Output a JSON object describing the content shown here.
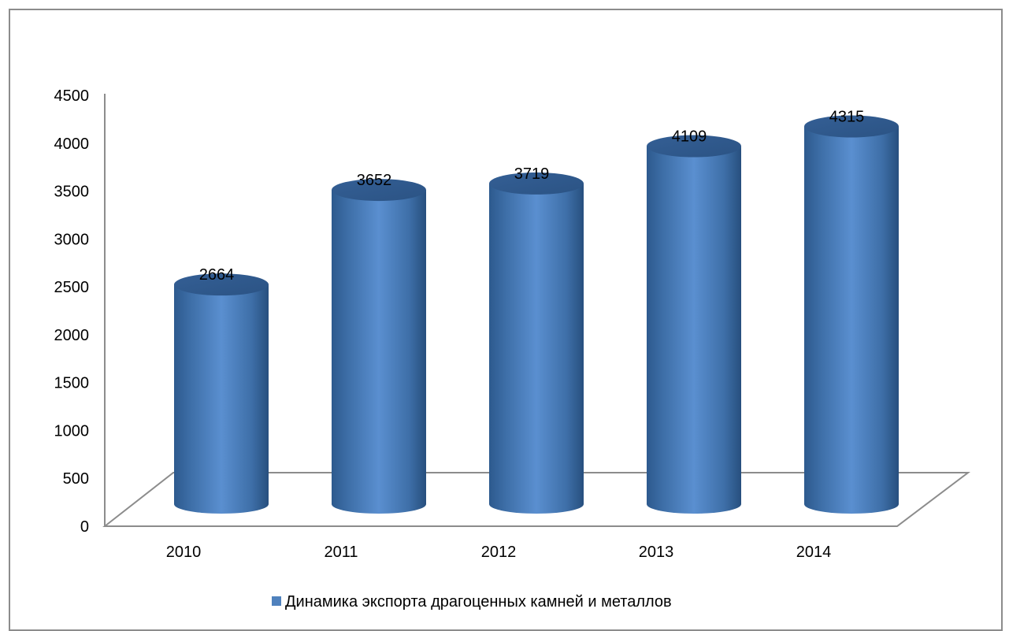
{
  "chart_data": {
    "type": "bar",
    "style": "3d-cylinder",
    "title": "",
    "xlabel": "",
    "ylabel": "",
    "categories": [
      "2010",
      "2011",
      "2012",
      "2013",
      "2014"
    ],
    "series": [
      {
        "name": "Динамика экспорта драгоценных камней и металлов",
        "values": [
          2664,
          3652,
          3719,
          4109,
          4315
        ],
        "color": "#4f81bd"
      }
    ],
    "ylim": [
      0,
      4500
    ],
    "y_ticks": [
      "0",
      "500",
      "1000",
      "1500",
      "2000",
      "2500",
      "3000",
      "3500",
      "4000",
      "4500"
    ],
    "data_labels": [
      "2664",
      "3652",
      "3719",
      "4109",
      "4315"
    ],
    "grid": false,
    "legend": "bottom"
  }
}
